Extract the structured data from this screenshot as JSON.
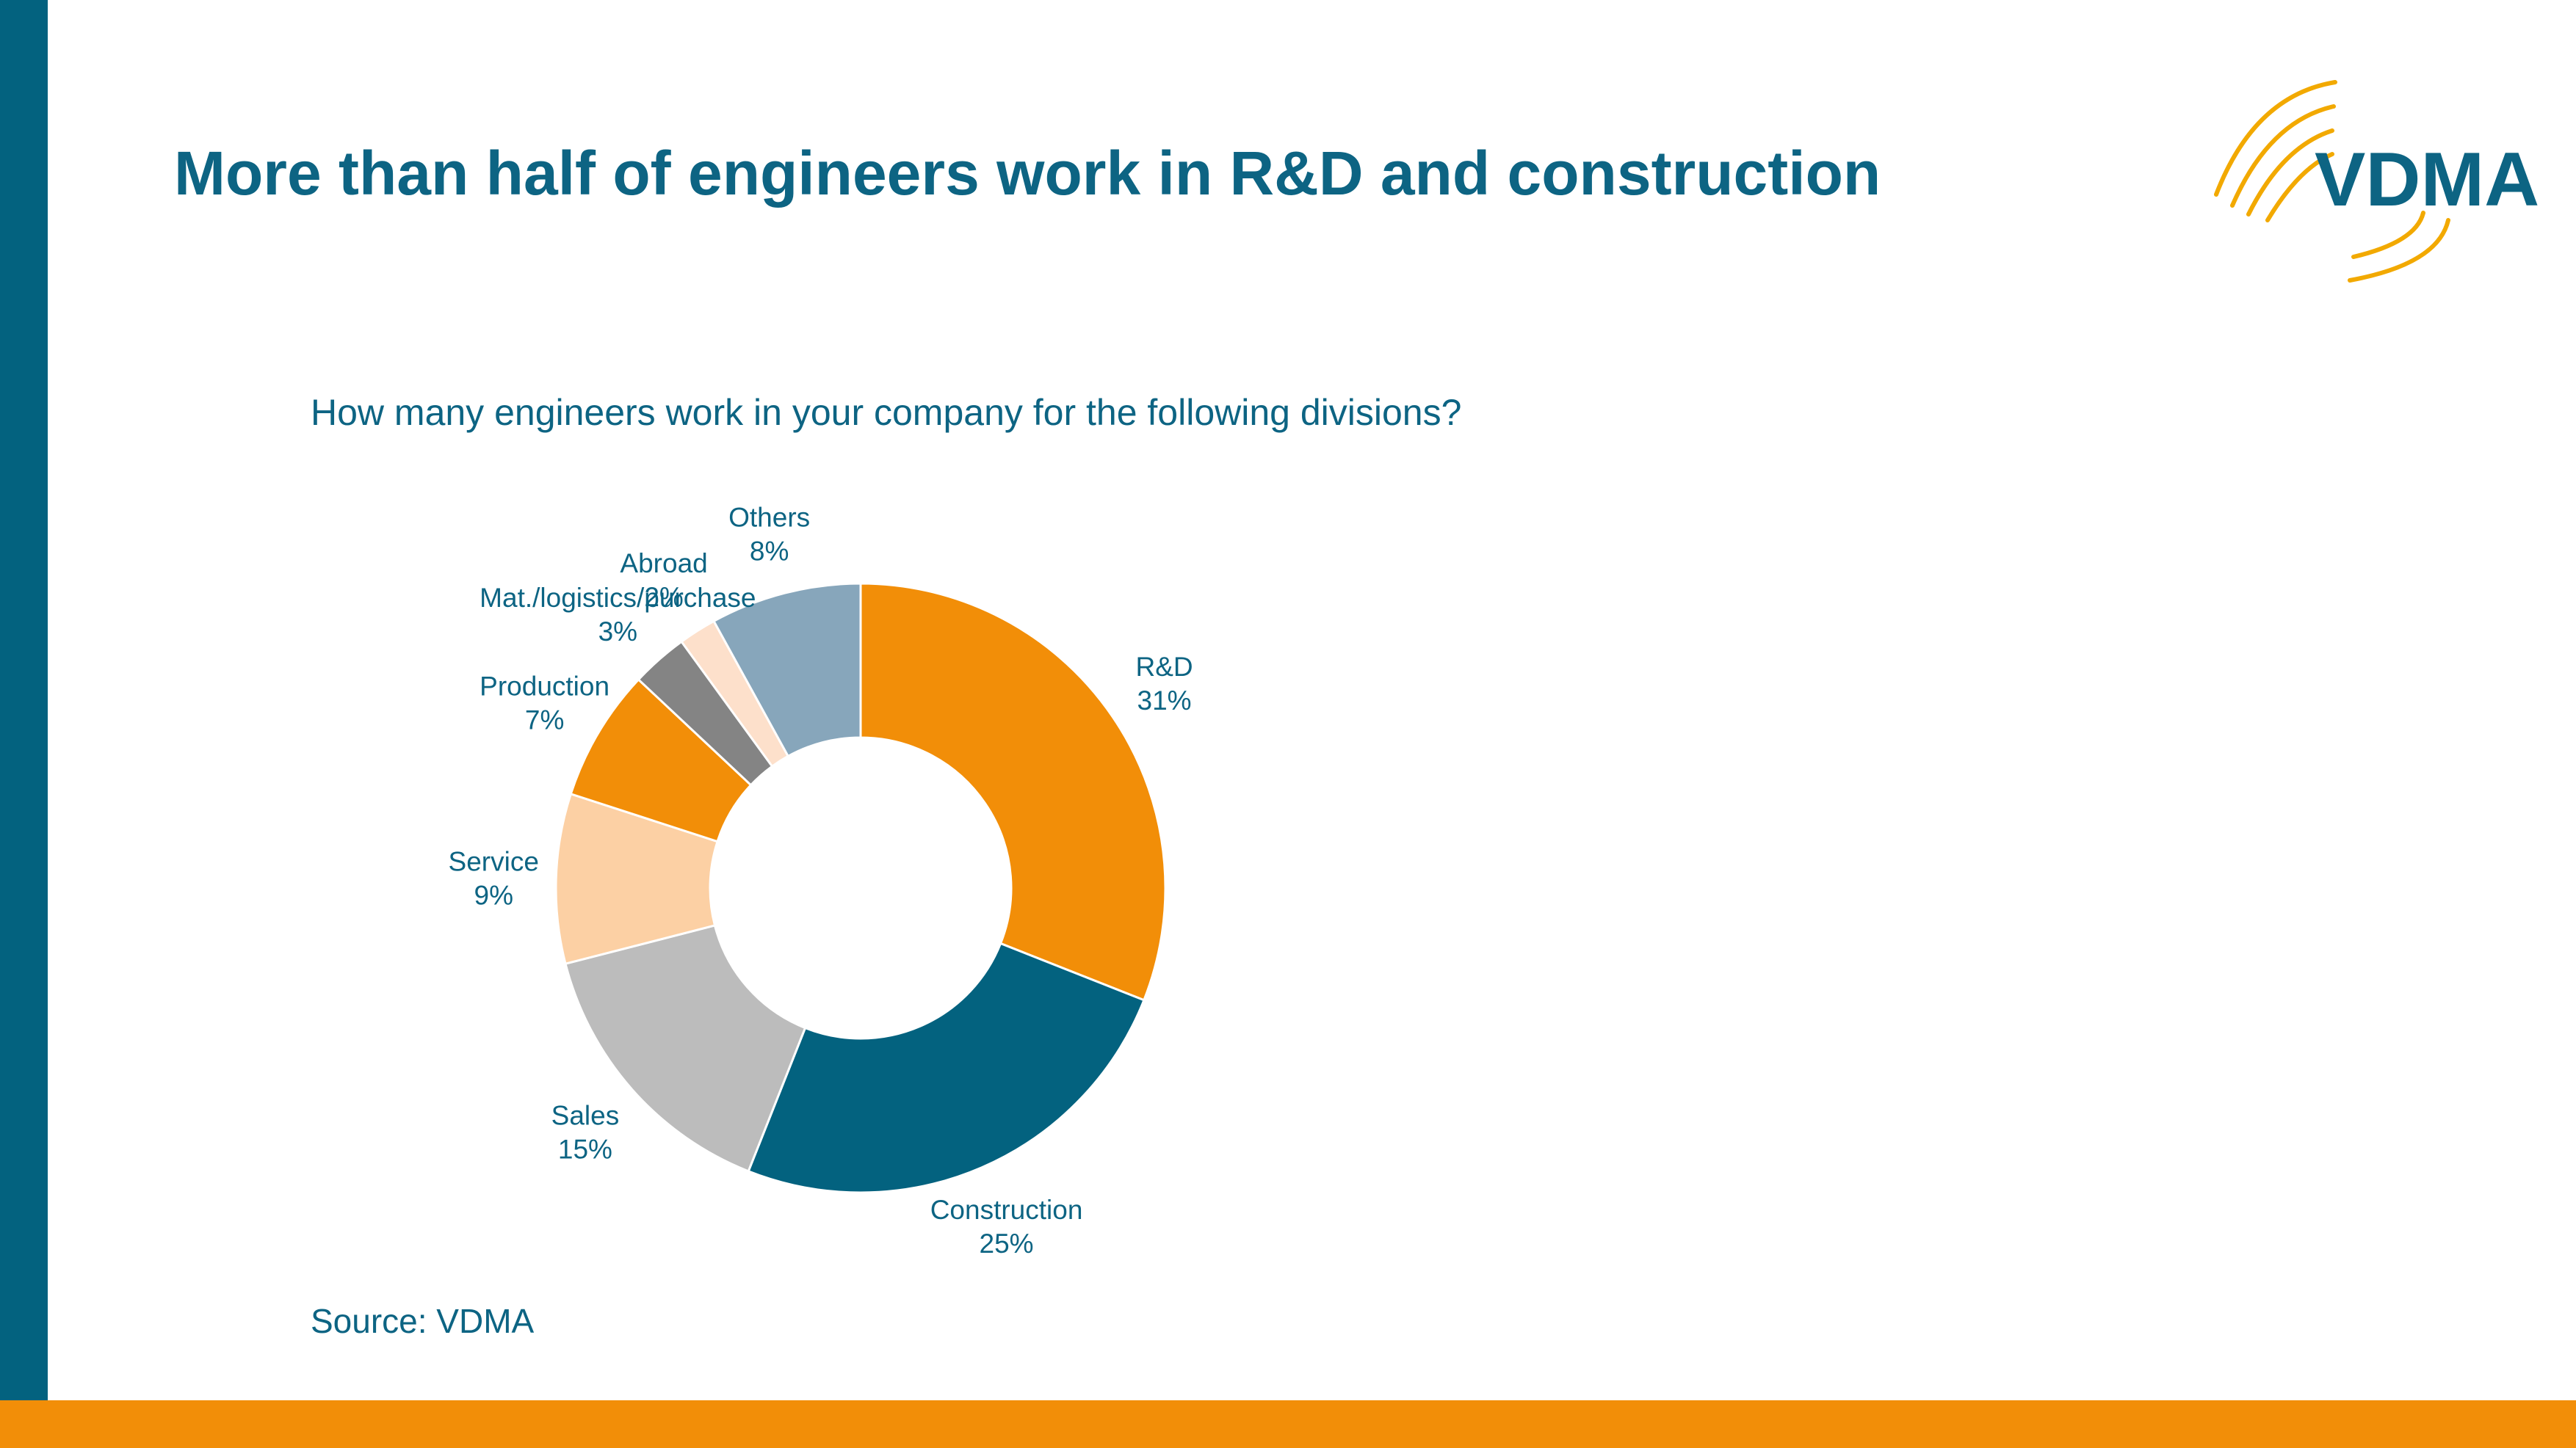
{
  "title": "More than half of engineers work in R&D and construction",
  "logo": {
    "text": "VDMA"
  },
  "colors": {
    "brand_blue": "#03627f",
    "brand_orange": "#f28e08",
    "text_blue": "#0d6483"
  },
  "chart_data": {
    "type": "pie",
    "variant": "donut",
    "title": "How many engineers work in your company for the following divisions?",
    "unit": "%",
    "slices": [
      {
        "label": "R&D",
        "value": 31,
        "value_label": "31%",
        "color": "#f28e08"
      },
      {
        "label": "Construction",
        "value": 25,
        "value_label": "25%",
        "color": "#03627f"
      },
      {
        "label": "Sales",
        "value": 15,
        "value_label": "15%",
        "color": "#bcbcbc"
      },
      {
        "label": "Service",
        "value": 9,
        "value_label": "9%",
        "color": "#fcd0a4"
      },
      {
        "label": "Production",
        "value": 7,
        "value_label": "7%",
        "color": "#f28e08"
      },
      {
        "label": "Mat./logistics/purchase",
        "value": 3,
        "value_label": "3%",
        "color": "#848484"
      },
      {
        "label": "Abroad",
        "value": 2,
        "value_label": "2%",
        "color": "#fde0cb"
      },
      {
        "label": "Others",
        "value": 8,
        "value_label": "8%",
        "color": "#87a6bb"
      }
    ],
    "start_angle": "12 o'clock",
    "direction": "clockwise",
    "labels": "outside"
  },
  "source": "Source: VDMA"
}
